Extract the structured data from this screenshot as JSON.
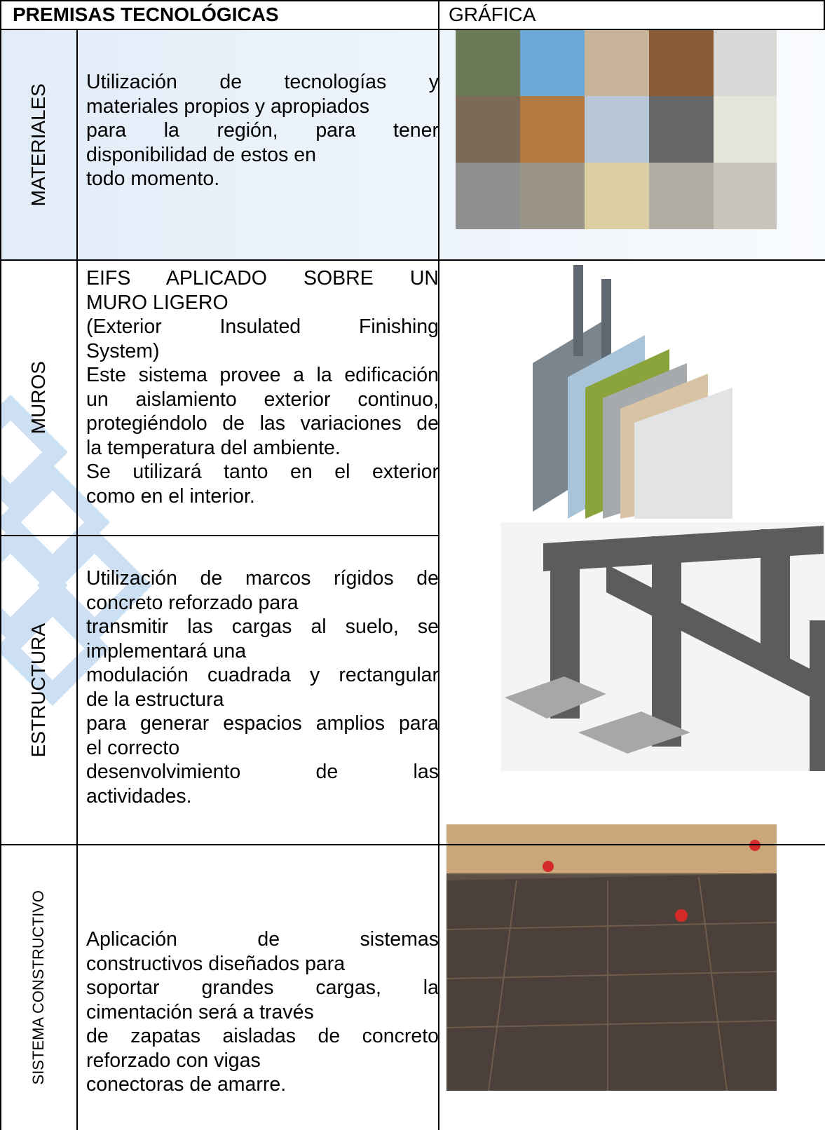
{
  "header": {
    "title": "PREMISAS TECNOLÓGICAS",
    "graphic": "GRÁFICA"
  },
  "rows": [
    {
      "label": "MATERIALES",
      "lines": [
        "Utilización de tecnologías y",
        "materiales propios y apropiados",
        "para la región, para tener",
        "disponibilidad de estos en",
        "todo momento."
      ]
    },
    {
      "label": "MUROS",
      "lines": [
        "EIFS APLICADO SOBRE UN",
        "MURO LIGERO",
        "(Exterior Insulated Finishing",
        "System)",
        "Este sistema provee a la edificación",
        "un aislamiento exterior continuo,",
        "protegiéndolo de las variaciones de",
        "la temperatura del ambiente.",
        "Se utilizará tanto en el exterior",
        "como en el interior."
      ]
    },
    {
      "label": "ESTRUCTURA",
      "lines": [
        "Utilización de marcos rígidos de",
        "concreto reforzado para",
        "transmitir las cargas al suelo, se",
        "implementará una",
        "modulación cuadrada y rectangular",
        "de la estructura",
        "para generar espacios amplios para",
        "el correcto",
        "desenvolvimiento de las",
        "actividades."
      ]
    },
    {
      "label": "SISTEMA CONSTRUCTIVO",
      "lines": [
        "Aplicación de sistemas",
        "constructivos diseñados para",
        "soportar grandes cargas, la",
        "cimentación será a través",
        "de zapatas aisladas de concreto",
        "reforzado con vigas",
        "conectoras de amarre."
      ]
    }
  ]
}
